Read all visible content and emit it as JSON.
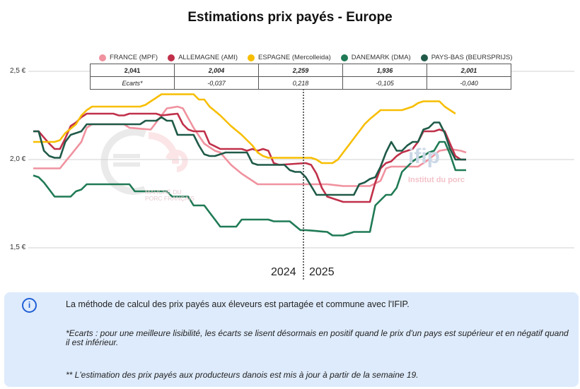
{
  "title": "Estimations prix payés - Europe",
  "legend": [
    {
      "label": "FRANCE (MPF)",
      "color": "#f0929f"
    },
    {
      "label": "ALLEMAGNE (AMI)",
      "color": "#c0304a"
    },
    {
      "label": "ESPAGNE (Mercolleida)",
      "color": "#f7be00"
    },
    {
      "label": "DANEMARK (DMA)",
      "color": "#1f7a55"
    },
    {
      "label": "PAYS-BAS (BEURSPRIJS)",
      "color": "#1f5a48"
    }
  ],
  "table": {
    "prices": [
      "2,041",
      "2,004",
      "2,259",
      "1,936",
      "2,001"
    ],
    "ecarts": [
      "Ecarts*",
      "-0,037",
      "0,218",
      "-0,105",
      "-0,040"
    ]
  },
  "watermarks": {
    "mpf_line1": "MARCHÉ DU",
    "mpf_line2": "PORC FRANÇAIS",
    "ifip": "ifip",
    "ifip_sub": "Institut du porc"
  },
  "info": {
    "icon": "info-icon",
    "line1": "La méthode de calcul des prix payés aux éleveurs est partagée et commune avec l'IFIP.",
    "line2": "*Ecarts : pour une meilleure lisibilité, les écarts se lisent désormais en positif quand le prix d'un pays est supérieur et en négatif quand il est inférieur.",
    "line3": "** L'estimation des prix payés aux producteurs danois est mis à jour à partir de la semaine 19."
  },
  "chart_data": {
    "type": "line",
    "title": "Estimations prix payés - Europe",
    "xlabel": "",
    "ylabel": "",
    "ylim": [
      1.5,
      2.5
    ],
    "yticks": [
      2.5,
      2.0,
      1.5
    ],
    "ytick_labels": [
      "2,5 €",
      "2,0 €",
      "1,5 €"
    ],
    "year_labels": [
      "2024",
      "2025"
    ],
    "year_divider_index": 50.5,
    "n_points": 82,
    "grid": true,
    "legend_position": "top",
    "series": [
      {
        "name": "FRANCE (MPF)",
        "color": "#f0929f",
        "keys": [
          [
            0,
            1.95
          ],
          [
            5,
            1.95
          ],
          [
            9,
            2.1
          ],
          [
            10,
            2.18
          ],
          [
            11,
            2.2
          ],
          [
            17,
            2.2
          ],
          [
            18,
            2.18
          ],
          [
            22,
            2.17
          ],
          [
            24,
            2.25
          ],
          [
            25,
            2.29
          ],
          [
            27,
            2.3
          ],
          [
            28,
            2.29
          ],
          [
            30,
            2.18
          ],
          [
            32,
            2.09
          ],
          [
            34,
            2.05
          ],
          [
            35,
            2.04
          ],
          [
            37,
            1.97
          ],
          [
            39,
            1.92
          ],
          [
            41,
            1.88
          ],
          [
            42,
            1.86
          ],
          [
            55,
            1.86
          ],
          [
            58,
            1.85
          ],
          [
            63,
            1.85
          ],
          [
            65,
            1.88
          ],
          [
            66,
            1.95
          ],
          [
            67,
            1.96
          ],
          [
            72,
            1.96
          ],
          [
            74,
            2.0
          ],
          [
            76,
            2.05
          ],
          [
            78,
            2.06
          ],
          [
            80,
            2.05
          ],
          [
            81,
            2.04
          ]
        ]
      },
      {
        "name": "ALLEMAGNE (AMI)",
        "color": "#c0304a",
        "keys": [
          [
            0,
            2.16
          ],
          [
            1,
            2.16
          ],
          [
            3,
            2.09
          ],
          [
            4,
            2.06
          ],
          [
            5,
            2.06
          ],
          [
            6,
            2.12
          ],
          [
            7,
            2.19
          ],
          [
            8,
            2.21
          ],
          [
            9,
            2.24
          ],
          [
            10,
            2.26
          ],
          [
            15,
            2.26
          ],
          [
            16,
            2.25
          ],
          [
            17,
            2.25
          ],
          [
            18,
            2.26
          ],
          [
            23,
            2.26
          ],
          [
            24,
            2.25
          ],
          [
            27,
            2.26
          ],
          [
            28,
            2.2
          ],
          [
            29,
            2.17
          ],
          [
            30,
            2.16
          ],
          [
            32,
            2.16
          ],
          [
            33,
            2.09
          ],
          [
            35,
            2.06
          ],
          [
            39,
            2.06
          ],
          [
            40,
            2.05
          ],
          [
            41,
            2.06
          ],
          [
            42,
            2.05
          ],
          [
            43,
            2.06
          ],
          [
            44,
            2.05
          ],
          [
            45,
            1.98
          ],
          [
            46,
            1.97
          ],
          [
            51,
            1.98
          ],
          [
            52,
            1.97
          ],
          [
            53,
            1.92
          ],
          [
            54,
            1.84
          ],
          [
            55,
            1.79
          ],
          [
            56,
            1.78
          ],
          [
            58,
            1.76
          ],
          [
            61,
            1.76
          ],
          [
            62,
            1.76
          ],
          [
            63,
            1.76
          ],
          [
            64,
            1.87
          ],
          [
            65,
            1.95
          ],
          [
            66,
            1.98
          ],
          [
            67,
            1.99
          ],
          [
            68,
            2.02
          ],
          [
            69,
            2.04
          ],
          [
            70,
            2.05
          ],
          [
            71,
            2.06
          ],
          [
            72,
            2.1
          ],
          [
            73,
            2.16
          ],
          [
            74,
            2.16
          ],
          [
            75,
            2.16
          ],
          [
            76,
            2.17
          ],
          [
            77,
            2.16
          ],
          [
            78,
            2.09
          ],
          [
            79,
            2.02
          ],
          [
            80,
            2.0
          ],
          [
            81,
            2.0
          ]
        ]
      },
      {
        "name": "ESPAGNE (Mercolleida)",
        "color": "#f7be00",
        "keys": [
          [
            0,
            2.1
          ],
          [
            4,
            2.1
          ],
          [
            5,
            2.11
          ],
          [
            6,
            2.15
          ],
          [
            8,
            2.2
          ],
          [
            9,
            2.25
          ],
          [
            10,
            2.28
          ],
          [
            11,
            2.3
          ],
          [
            20,
            2.3
          ],
          [
            21,
            2.31
          ],
          [
            22,
            2.33
          ],
          [
            23,
            2.35
          ],
          [
            24,
            2.37
          ],
          [
            30,
            2.37
          ],
          [
            31,
            2.34
          ],
          [
            32,
            2.34
          ],
          [
            33,
            2.3
          ],
          [
            35,
            2.25
          ],
          [
            37,
            2.19
          ],
          [
            39,
            2.14
          ],
          [
            41,
            2.08
          ],
          [
            42,
            2.04
          ],
          [
            43,
            2.02
          ],
          [
            44,
            2.01
          ],
          [
            52,
            2.01
          ],
          [
            53,
            2.0
          ],
          [
            54,
            1.98
          ],
          [
            56,
            1.98
          ],
          [
            57,
            2.0
          ],
          [
            58,
            2.04
          ],
          [
            59,
            2.08
          ],
          [
            60,
            2.12
          ],
          [
            61,
            2.16
          ],
          [
            62,
            2.2
          ],
          [
            63,
            2.23
          ],
          [
            65,
            2.28
          ],
          [
            67,
            2.28
          ],
          [
            69,
            2.28
          ],
          [
            70,
            2.29
          ],
          [
            71,
            2.3
          ],
          [
            72,
            2.32
          ],
          [
            73,
            2.33
          ],
          [
            76,
            2.33
          ],
          [
            77,
            2.3
          ],
          [
            78,
            2.28
          ],
          [
            79,
            2.26
          ]
        ]
      },
      {
        "name": "DANEMARK (DMA)",
        "color": "#1f7a55",
        "keys": [
          [
            0,
            1.91
          ],
          [
            1,
            1.9
          ],
          [
            2,
            1.87
          ],
          [
            3,
            1.83
          ],
          [
            4,
            1.79
          ],
          [
            6,
            1.79
          ],
          [
            7,
            1.79
          ],
          [
            8,
            1.82
          ],
          [
            9,
            1.83
          ],
          [
            10,
            1.86
          ],
          [
            18,
            1.86
          ],
          [
            19,
            1.82
          ],
          [
            25,
            1.82
          ],
          [
            26,
            1.79
          ],
          [
            29,
            1.79
          ],
          [
            30,
            1.74
          ],
          [
            32,
            1.74
          ],
          [
            33,
            1.7
          ],
          [
            34,
            1.66
          ],
          [
            35,
            1.62
          ],
          [
            38,
            1.62
          ],
          [
            39,
            1.66
          ],
          [
            44,
            1.66
          ],
          [
            45,
            1.65
          ],
          [
            48,
            1.65
          ],
          [
            50,
            1.6
          ],
          [
            51,
            1.6
          ],
          [
            55,
            1.59
          ],
          [
            56,
            1.57
          ],
          [
            58,
            1.57
          ],
          [
            59,
            1.58
          ],
          [
            60,
            1.59
          ],
          [
            63,
            1.59
          ],
          [
            64,
            1.74
          ],
          [
            65,
            1.77
          ],
          [
            66,
            1.8
          ],
          [
            67,
            1.8
          ],
          [
            68,
            1.84
          ],
          [
            69,
            1.93
          ],
          [
            70,
            1.96
          ],
          [
            71,
            1.99
          ],
          [
            72,
            2.01
          ],
          [
            73,
            2.02
          ],
          [
            74,
            2.04
          ],
          [
            75,
            2.05
          ],
          [
            76,
            2.1
          ],
          [
            77,
            2.1
          ],
          [
            78,
            2.03
          ],
          [
            79,
            1.94
          ],
          [
            81,
            1.94
          ]
        ]
      },
      {
        "name": "PAYS-BAS (BEURSPRIJS)",
        "color": "#1f5a48",
        "keys": [
          [
            0,
            2.16
          ],
          [
            1,
            2.16
          ],
          [
            2,
            2.05
          ],
          [
            3,
            2.02
          ],
          [
            4,
            2.01
          ],
          [
            5,
            2.01
          ],
          [
            6,
            2.1
          ],
          [
            7,
            2.14
          ],
          [
            8,
            2.15
          ],
          [
            9,
            2.16
          ],
          [
            10,
            2.2
          ],
          [
            18,
            2.2
          ],
          [
            19,
            2.2
          ],
          [
            20,
            2.2
          ],
          [
            21,
            2.22
          ],
          [
            23,
            2.22
          ],
          [
            24,
            2.24
          ],
          [
            25,
            2.22
          ],
          [
            26,
            2.22
          ],
          [
            27,
            2.14
          ],
          [
            30,
            2.14
          ],
          [
            31,
            2.08
          ],
          [
            32,
            2.03
          ],
          [
            33,
            2.02
          ],
          [
            34,
            2.02
          ],
          [
            35,
            2.03
          ],
          [
            36,
            2.04
          ],
          [
            37,
            2.04
          ],
          [
            40,
            2.04
          ],
          [
            41,
            1.98
          ],
          [
            42,
            1.97
          ],
          [
            47,
            1.97
          ],
          [
            48,
            1.94
          ],
          [
            49,
            1.93
          ],
          [
            50,
            1.93
          ],
          [
            51,
            1.9
          ],
          [
            52,
            1.85
          ],
          [
            53,
            1.8
          ],
          [
            54,
            1.8
          ],
          [
            60,
            1.8
          ],
          [
            61,
            1.86
          ],
          [
            62,
            1.87
          ],
          [
            63,
            1.89
          ],
          [
            64,
            1.9
          ],
          [
            65,
            1.96
          ],
          [
            66,
            2.04
          ],
          [
            67,
            2.1
          ],
          [
            68,
            2.05
          ],
          [
            69,
            2.05
          ],
          [
            70,
            2.08
          ],
          [
            71,
            2.1
          ],
          [
            72,
            2.1
          ],
          [
            73,
            2.17
          ],
          [
            74,
            2.18
          ],
          [
            75,
            2.21
          ],
          [
            76,
            2.21
          ],
          [
            77,
            2.15
          ],
          [
            78,
            2.06
          ],
          [
            79,
            2.0
          ],
          [
            81,
            2.0
          ]
        ]
      }
    ]
  }
}
